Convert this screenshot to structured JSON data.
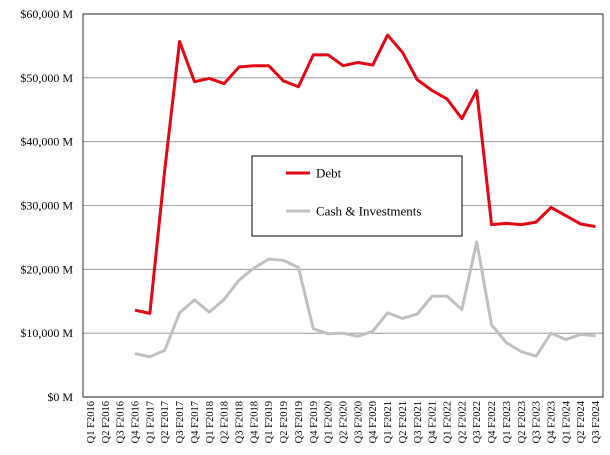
{
  "chart_data": {
    "type": "line",
    "title": "",
    "xlabel": "",
    "ylabel": "",
    "ylim": [
      0,
      60000
    ],
    "y_ticks": [
      0,
      10000,
      20000,
      30000,
      40000,
      50000,
      60000
    ],
    "y_tick_labels": [
      "$0 M",
      "$10,000 M",
      "$20,000 M",
      "$30,000 M",
      "$40,000 M",
      "$50,000 M",
      "$60,000 M"
    ],
    "grid": true,
    "legend_position": "center",
    "categories": [
      "Q1 F2016",
      "Q2 F2016",
      "Q3 F2016",
      "Q4 F2016",
      "Q1 F2017",
      "Q2 F2017",
      "Q3 F2017",
      "Q4 F2017",
      "Q1 F2018",
      "Q2 F2018",
      "Q3 F2018",
      "Q4 F2018",
      "Q1 F2019",
      "Q2 F2019",
      "Q3 F2019",
      "Q4 F2019",
      "Q1 F2020",
      "Q2 F2020",
      "Q3 F2020",
      "Q4 F2020",
      "Q1 F2021",
      "Q2 F2021",
      "Q3 F2021",
      "Q4 F2021",
      "Q1 F2022",
      "Q2 F2022",
      "Q3 F2022",
      "Q4 F2022",
      "Q1 F2023",
      "Q2 F2023",
      "Q3 F2023",
      "Q4 F2023",
      "Q1 F2024",
      "Q2 F2024",
      "Q3 F2024"
    ],
    "series": [
      {
        "name": "Debt",
        "color": "#e30613",
        "values": [
          null,
          null,
          null,
          13600,
          13100,
          35500,
          55700,
          49400,
          49900,
          49100,
          51700,
          51900,
          51900,
          49500,
          48600,
          53600,
          53600,
          51900,
          52400,
          52000,
          56700,
          54000,
          49700,
          48000,
          46700,
          43600,
          48000,
          27000,
          27200,
          27000,
          27400,
          29700,
          28400,
          27100,
          26700
        ]
      },
      {
        "name": "Cash & Investments",
        "color": "#c0c0c0",
        "values": [
          null,
          null,
          null,
          6800,
          6300,
          7300,
          13200,
          15200,
          13300,
          15300,
          18300,
          20200,
          21600,
          21400,
          20300,
          10700,
          9900,
          10000,
          9500,
          10300,
          13200,
          12300,
          13000,
          15800,
          15800,
          13700,
          24300,
          11300,
          8500,
          7100,
          6400,
          10000,
          9000,
          9800,
          9600
        ]
      }
    ]
  }
}
